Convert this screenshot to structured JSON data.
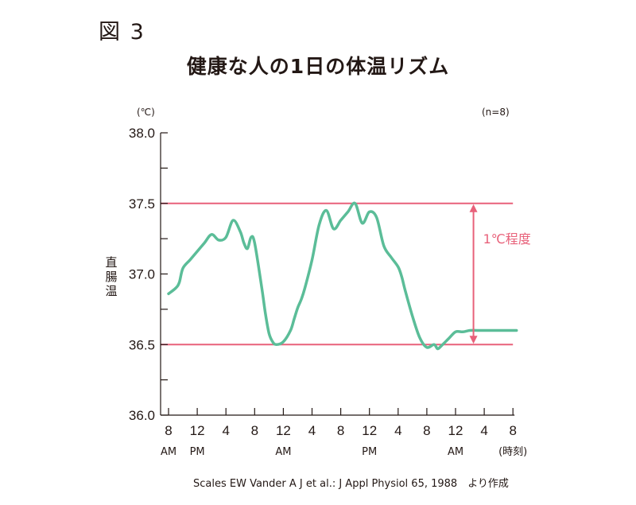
{
  "figure_label": "図 3",
  "source_note": "Scales EW Vander A J et al.: J Appl Physiol 65, 1988　より作成",
  "chart_data": {
    "type": "line",
    "title": "健康な人の1日の体温リズム",
    "ylabel": "直腸温",
    "yunit": "(℃)",
    "sample_note": "(n=8)",
    "ylim": [
      36.0,
      38.0
    ],
    "yticks": [
      "38.0",
      "37.5",
      "37.0",
      "36.5",
      "36.0"
    ],
    "xticks": [
      {
        "top": "8",
        "bottom": "AM"
      },
      {
        "top": "12",
        "bottom": "PM"
      },
      {
        "top": "4",
        "bottom": ""
      },
      {
        "top": "8",
        "bottom": ""
      },
      {
        "top": "12",
        "bottom": "AM"
      },
      {
        "top": "4",
        "bottom": ""
      },
      {
        "top": "8",
        "bottom": ""
      },
      {
        "top": "12",
        "bottom": "PM"
      },
      {
        "top": "4",
        "bottom": ""
      },
      {
        "top": "8",
        "bottom": ""
      },
      {
        "top": "12",
        "bottom": "AM"
      },
      {
        "top": "4",
        "bottom": ""
      },
      {
        "top": "8",
        "bottom": "(時刻)"
      }
    ],
    "reference_lines": [
      37.5,
      36.5
    ],
    "annotation": {
      "text": "1℃程度",
      "from": 36.5,
      "to": 37.5,
      "x_hour": 42.5
    },
    "colors": {
      "line": "#5bbd98",
      "reference": "#e8617a",
      "axis": "#231815"
    },
    "series": [
      {
        "x_hours": [
          0,
          1,
          1.5,
          2,
          3,
          4,
          5,
          6,
          7,
          8,
          9,
          10,
          10.5,
          11,
          11.5,
          12,
          13,
          13.5,
          14,
          14.5,
          15,
          16,
          17,
          17.5,
          18,
          18.5,
          19,
          20,
          21,
          22,
          23,
          24,
          25,
          26,
          27,
          28,
          29,
          30,
          31,
          32,
          32.5,
          33,
          34,
          35,
          36,
          37,
          37.5,
          38,
          39,
          40,
          41,
          42,
          43,
          44,
          45,
          46,
          46.5,
          47,
          47.5,
          48,
          48.5
        ],
        "values": [
          36.86,
          36.9,
          36.94,
          37.04,
          37.1,
          37.16,
          37.22,
          37.28,
          37.24,
          37.26,
          37.38,
          37.3,
          37.22,
          37.18,
          37.26,
          37.22,
          36.9,
          36.72,
          36.58,
          36.52,
          36.5,
          36.52,
          36.6,
          36.68,
          36.76,
          36.82,
          36.9,
          37.1,
          37.35,
          37.45,
          37.32,
          37.38,
          37.44,
          37.5,
          37.36,
          37.44,
          37.4,
          37.2,
          37.12,
          37.05,
          36.98,
          36.88,
          36.7,
          36.55,
          36.48,
          36.5,
          36.47,
          36.49,
          36.54,
          36.59,
          36.59,
          36.6,
          36.6,
          36.6,
          36.6,
          36.6,
          36.6,
          36.6,
          36.6,
          36.6,
          36.6
        ]
      }
    ]
  }
}
